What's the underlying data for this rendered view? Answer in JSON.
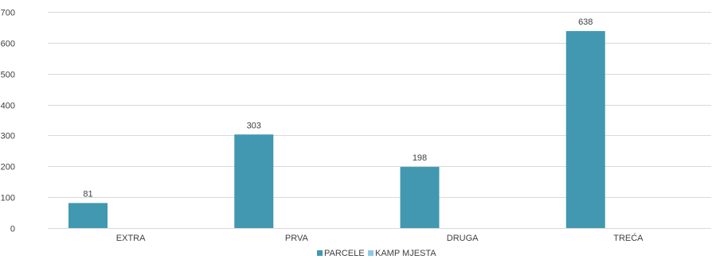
{
  "chart_data": {
    "type": "bar",
    "categories": [
      "EXTRA",
      "PRVA",
      "DRUGA",
      "TREĆA"
    ],
    "series": [
      {
        "name": "PARCELE",
        "values": [
          81,
          303,
          198,
          638
        ],
        "color": "#4198b0"
      },
      {
        "name": "KAMP MJESTA",
        "values": [
          0,
          0,
          0,
          0
        ],
        "color": "#8ec9e2"
      }
    ],
    "data_labels": [
      "81",
      "303",
      "198",
      "638"
    ],
    "ylim": [
      0,
      700
    ],
    "yticks": [
      0,
      100,
      200,
      300,
      400,
      500,
      600,
      700
    ],
    "grid": true,
    "legend_position": "bottom",
    "title": "",
    "xlabel": "",
    "ylabel": ""
  }
}
